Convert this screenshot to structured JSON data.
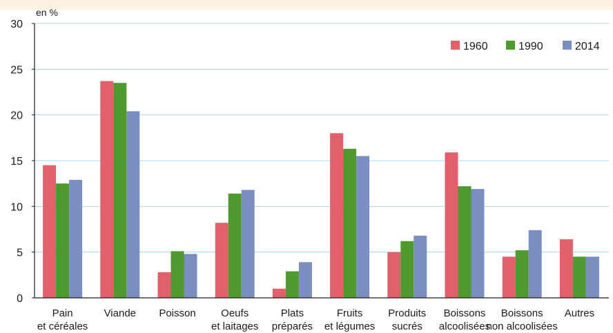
{
  "chart_data": {
    "type": "bar",
    "unit_label": "en %",
    "categories": [
      [
        "Pain",
        "et céréales"
      ],
      [
        "Viande"
      ],
      [
        "Poisson"
      ],
      [
        "Oeufs",
        "et laitages"
      ],
      [
        "Plats",
        "préparés"
      ],
      [
        "Fruits",
        "et légumes"
      ],
      [
        "Produits",
        "sucrés"
      ],
      [
        "Boissons",
        "alcoolisées"
      ],
      [
        "Boissons",
        "non alcoolisées"
      ],
      [
        "Autres"
      ]
    ],
    "series": [
      {
        "name": "1960",
        "color": "#e0606b",
        "values": [
          14.5,
          23.7,
          2.8,
          8.2,
          1.0,
          18.0,
          5.0,
          15.9,
          4.5,
          6.4
        ]
      },
      {
        "name": "1990",
        "color": "#4e9a2f",
        "values": [
          12.5,
          23.5,
          5.1,
          11.4,
          2.9,
          16.3,
          6.2,
          12.2,
          5.2,
          4.5
        ]
      },
      {
        "name": "2014",
        "color": "#7a8fbf",
        "values": [
          12.9,
          20.4,
          4.8,
          11.8,
          3.9,
          15.5,
          6.8,
          11.9,
          7.4,
          4.5
        ]
      }
    ],
    "ylim": [
      0,
      30
    ],
    "yticks": [
      0,
      5,
      10,
      15,
      20,
      25,
      30
    ],
    "grid": true,
    "legend_position": "top-right",
    "gridline_color": "#a9d4e8"
  }
}
